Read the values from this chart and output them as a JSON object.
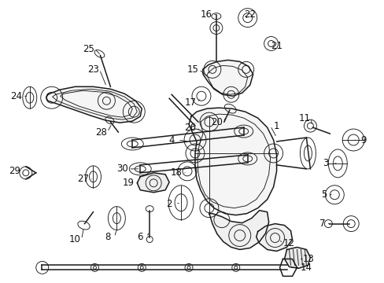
{
  "figsize": [
    4.89,
    3.6
  ],
  "dpi": 100,
  "bg_color": "#ffffff",
  "lc": "#1a1a1a",
  "lw_main": 1.1,
  "lw_thin": 0.65,
  "fs": 8.5,
  "fc": "#111111"
}
